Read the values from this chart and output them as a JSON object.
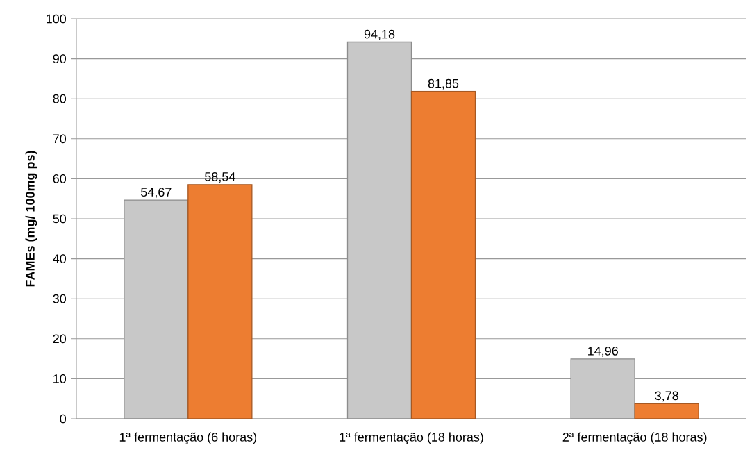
{
  "chart_data": {
    "type": "bar",
    "ylabel": "FAMEs (mg/ 100mg ps)",
    "categories": [
      "1ª fermentação (6 horas)",
      "1ª fermentação (18 horas)",
      "2ª fermentação (18 horas)"
    ],
    "series": [
      {
        "color": "#c8c8c8",
        "values": [
          54.67,
          94.18,
          14.96
        ],
        "value_labels": [
          "54,67",
          "94,18",
          "14,96"
        ]
      },
      {
        "color": "#ed7d31",
        "values": [
          58.54,
          81.85,
          3.78
        ],
        "value_labels": [
          "58,54",
          "81,85",
          "3,78"
        ]
      }
    ],
    "ylim": [
      0,
      100
    ],
    "yticks": [
      0,
      10,
      20,
      30,
      40,
      50,
      60,
      70,
      80,
      90,
      100
    ],
    "grid": "y"
  }
}
